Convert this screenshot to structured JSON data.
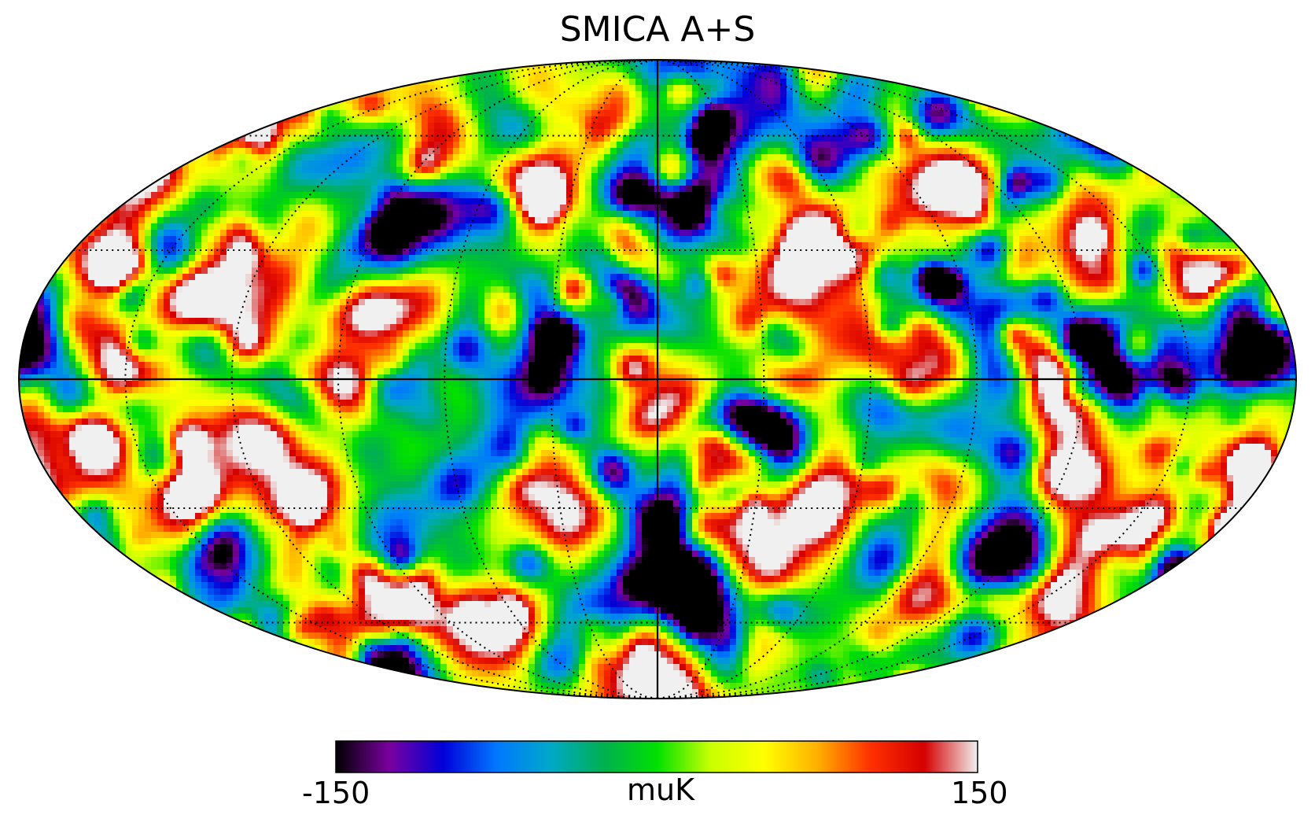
{
  "title": "SMICA A+S",
  "projection": "mollweide",
  "graticule": {
    "meridian_step_deg": 30,
    "parallel_step_deg": 30,
    "style": "dotted"
  },
  "colorbar": {
    "min_label": "-150",
    "max_label": "150",
    "unit_label": "muK",
    "range": [
      -150,
      150
    ],
    "colormap": [
      "#000000",
      "#7a00a0",
      "#0000d8",
      "#0078ff",
      "#00a8c8",
      "#00b050",
      "#00e000",
      "#c8ff00",
      "#ffff00",
      "#ffb000",
      "#ff3000",
      "#d40000",
      "#f0f0f0"
    ]
  }
}
